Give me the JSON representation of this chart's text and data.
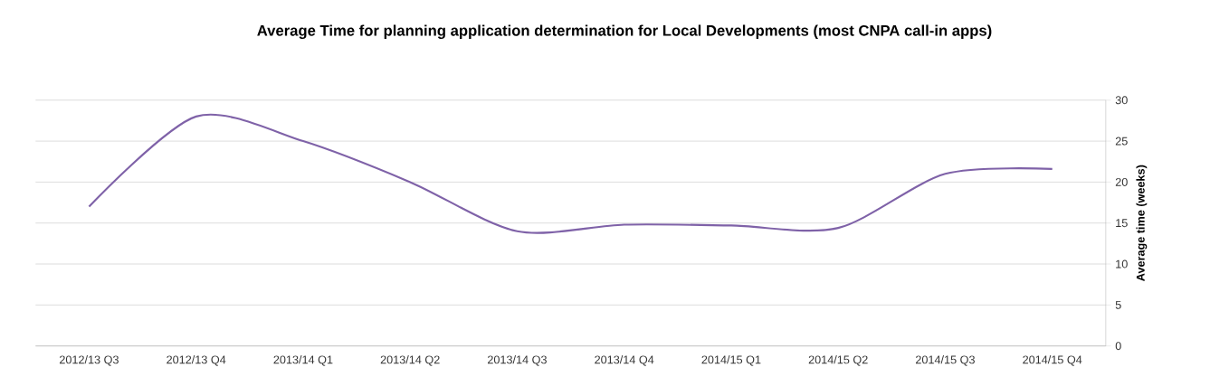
{
  "chart_data": {
    "type": "line",
    "title": "Average Time for planning application determination for Local Developments (most CNPA call-in apps)",
    "ylabel": "Average time (weeks)",
    "categories": [
      "2012/13 Q3",
      "2012/13 Q4",
      "2013/14 Q1",
      "2013/14 Q2",
      "2013/14 Q3",
      "2013/14 Q4",
      "2014/15 Q1",
      "2014/15 Q2",
      "2014/15 Q3",
      "2014/15 Q4"
    ],
    "series": [
      {
        "color": "#7f62a8",
        "values": [
          17,
          28,
          25,
          20,
          14,
          14.8,
          14.7,
          14.4,
          21,
          21.6
        ]
      }
    ],
    "ylim": [
      0,
      30
    ],
    "yticks": [
      0,
      5,
      10,
      15,
      20,
      25,
      30
    ],
    "grid": "y",
    "legend": false,
    "marker": "none",
    "line_style": "solid"
  }
}
